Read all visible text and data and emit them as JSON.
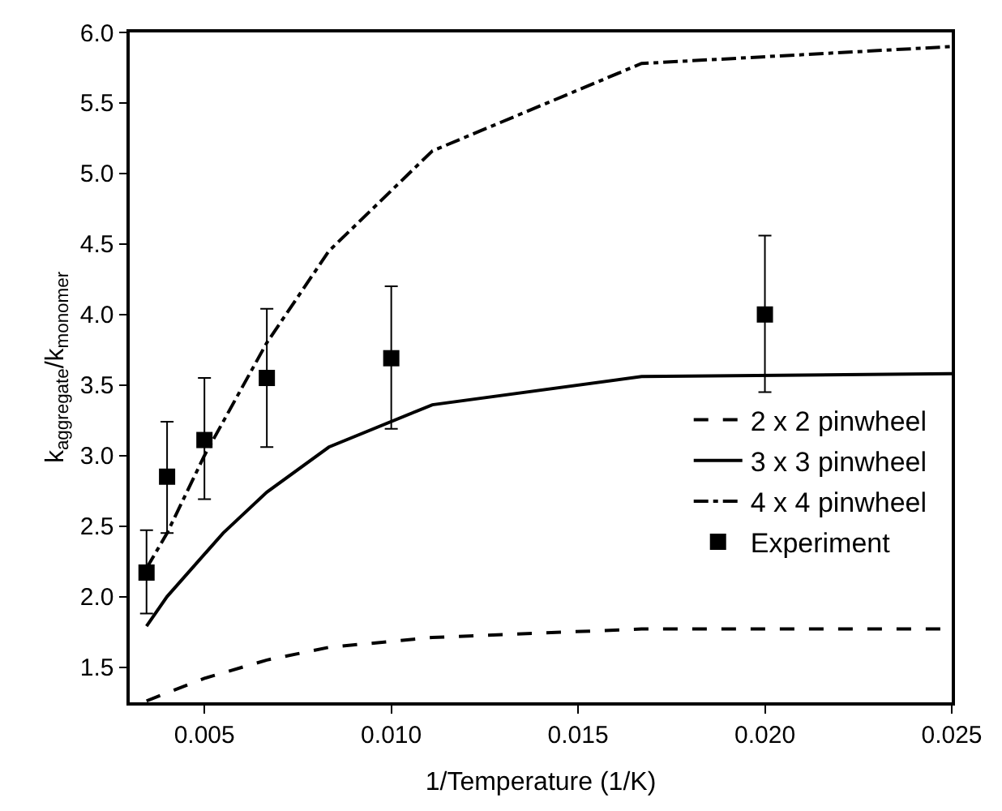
{
  "chart_data": {
    "type": "line",
    "xlabel": "1/Temperature (1/K)",
    "ylabel": "k$_{aggregate}$/k$_{monomer}$",
    "xlim": [
      0.003,
      0.025
    ],
    "xticks": [
      {
        "value": 0.005,
        "label": "0.005"
      },
      {
        "value": 0.01,
        "label": "0.010"
      },
      {
        "value": 0.015,
        "label": "0.015"
      },
      {
        "value": 0.02,
        "label": "0.020"
      },
      {
        "value": 0.025,
        "label": "0.025"
      }
    ],
    "ylim": [
      1.25,
      6.0
    ],
    "yticks": [
      {
        "value": 1.5,
        "label": "1.5"
      },
      {
        "value": 2.0,
        "label": "2.0"
      },
      {
        "value": 2.5,
        "label": "2.5"
      },
      {
        "value": 3.0,
        "label": "3.0"
      },
      {
        "value": 3.5,
        "label": "3.5"
      },
      {
        "value": 4.0,
        "label": "4.0"
      },
      {
        "value": 4.5,
        "label": "4.5"
      },
      {
        "value": 5.0,
        "label": "5.0"
      },
      {
        "value": 5.5,
        "label": "5.5"
      },
      {
        "value": 6.0,
        "label": "6.0"
      }
    ],
    "legend": "right",
    "series": [
      {
        "name": "2 x 2 pinwheel",
        "color": "#000000",
        "line_style": "dashed",
        "marker": "none",
        "x": [
          0.00345,
          0.005,
          0.00667,
          0.00833,
          0.0111,
          0.0167,
          0.025
        ],
        "values": [
          1.26,
          1.42,
          1.55,
          1.64,
          1.71,
          1.77,
          1.77
        ]
      },
      {
        "name": "3 x 3 pinwheel",
        "color": "#000000",
        "line_style": "solid",
        "marker": "none",
        "x": [
          0.00345,
          0.004,
          0.005,
          0.0055,
          0.00667,
          0.00833,
          0.0111,
          0.0167,
          0.025
        ],
        "values": [
          1.79,
          2.0,
          2.3,
          2.45,
          2.74,
          3.06,
          3.36,
          3.56,
          3.58
        ]
      },
      {
        "name": "4 x 4 pinwheel",
        "color": "#000000",
        "line_style": "dashdot",
        "marker": "none",
        "x": [
          0.00345,
          0.004,
          0.005,
          0.00667,
          0.00833,
          0.0111,
          0.0167,
          0.025
        ],
        "values": [
          2.2,
          2.45,
          3.0,
          3.8,
          4.45,
          5.16,
          5.78,
          5.9
        ]
      },
      {
        "name": "Experiment",
        "type": "scatter",
        "color": "#000000",
        "marker": "square",
        "x": [
          0.00345,
          0.004,
          0.005,
          0.00667,
          0.01,
          0.02
        ],
        "values": [
          2.17,
          2.85,
          3.11,
          3.55,
          3.69,
          4.0
        ],
        "errors": [
          [
            1.88,
            2.47
          ],
          [
            2.45,
            3.24
          ],
          [
            2.69,
            3.55
          ],
          [
            3.06,
            4.04
          ],
          [
            3.19,
            4.2
          ],
          [
            3.45,
            4.56
          ]
        ]
      }
    ]
  }
}
